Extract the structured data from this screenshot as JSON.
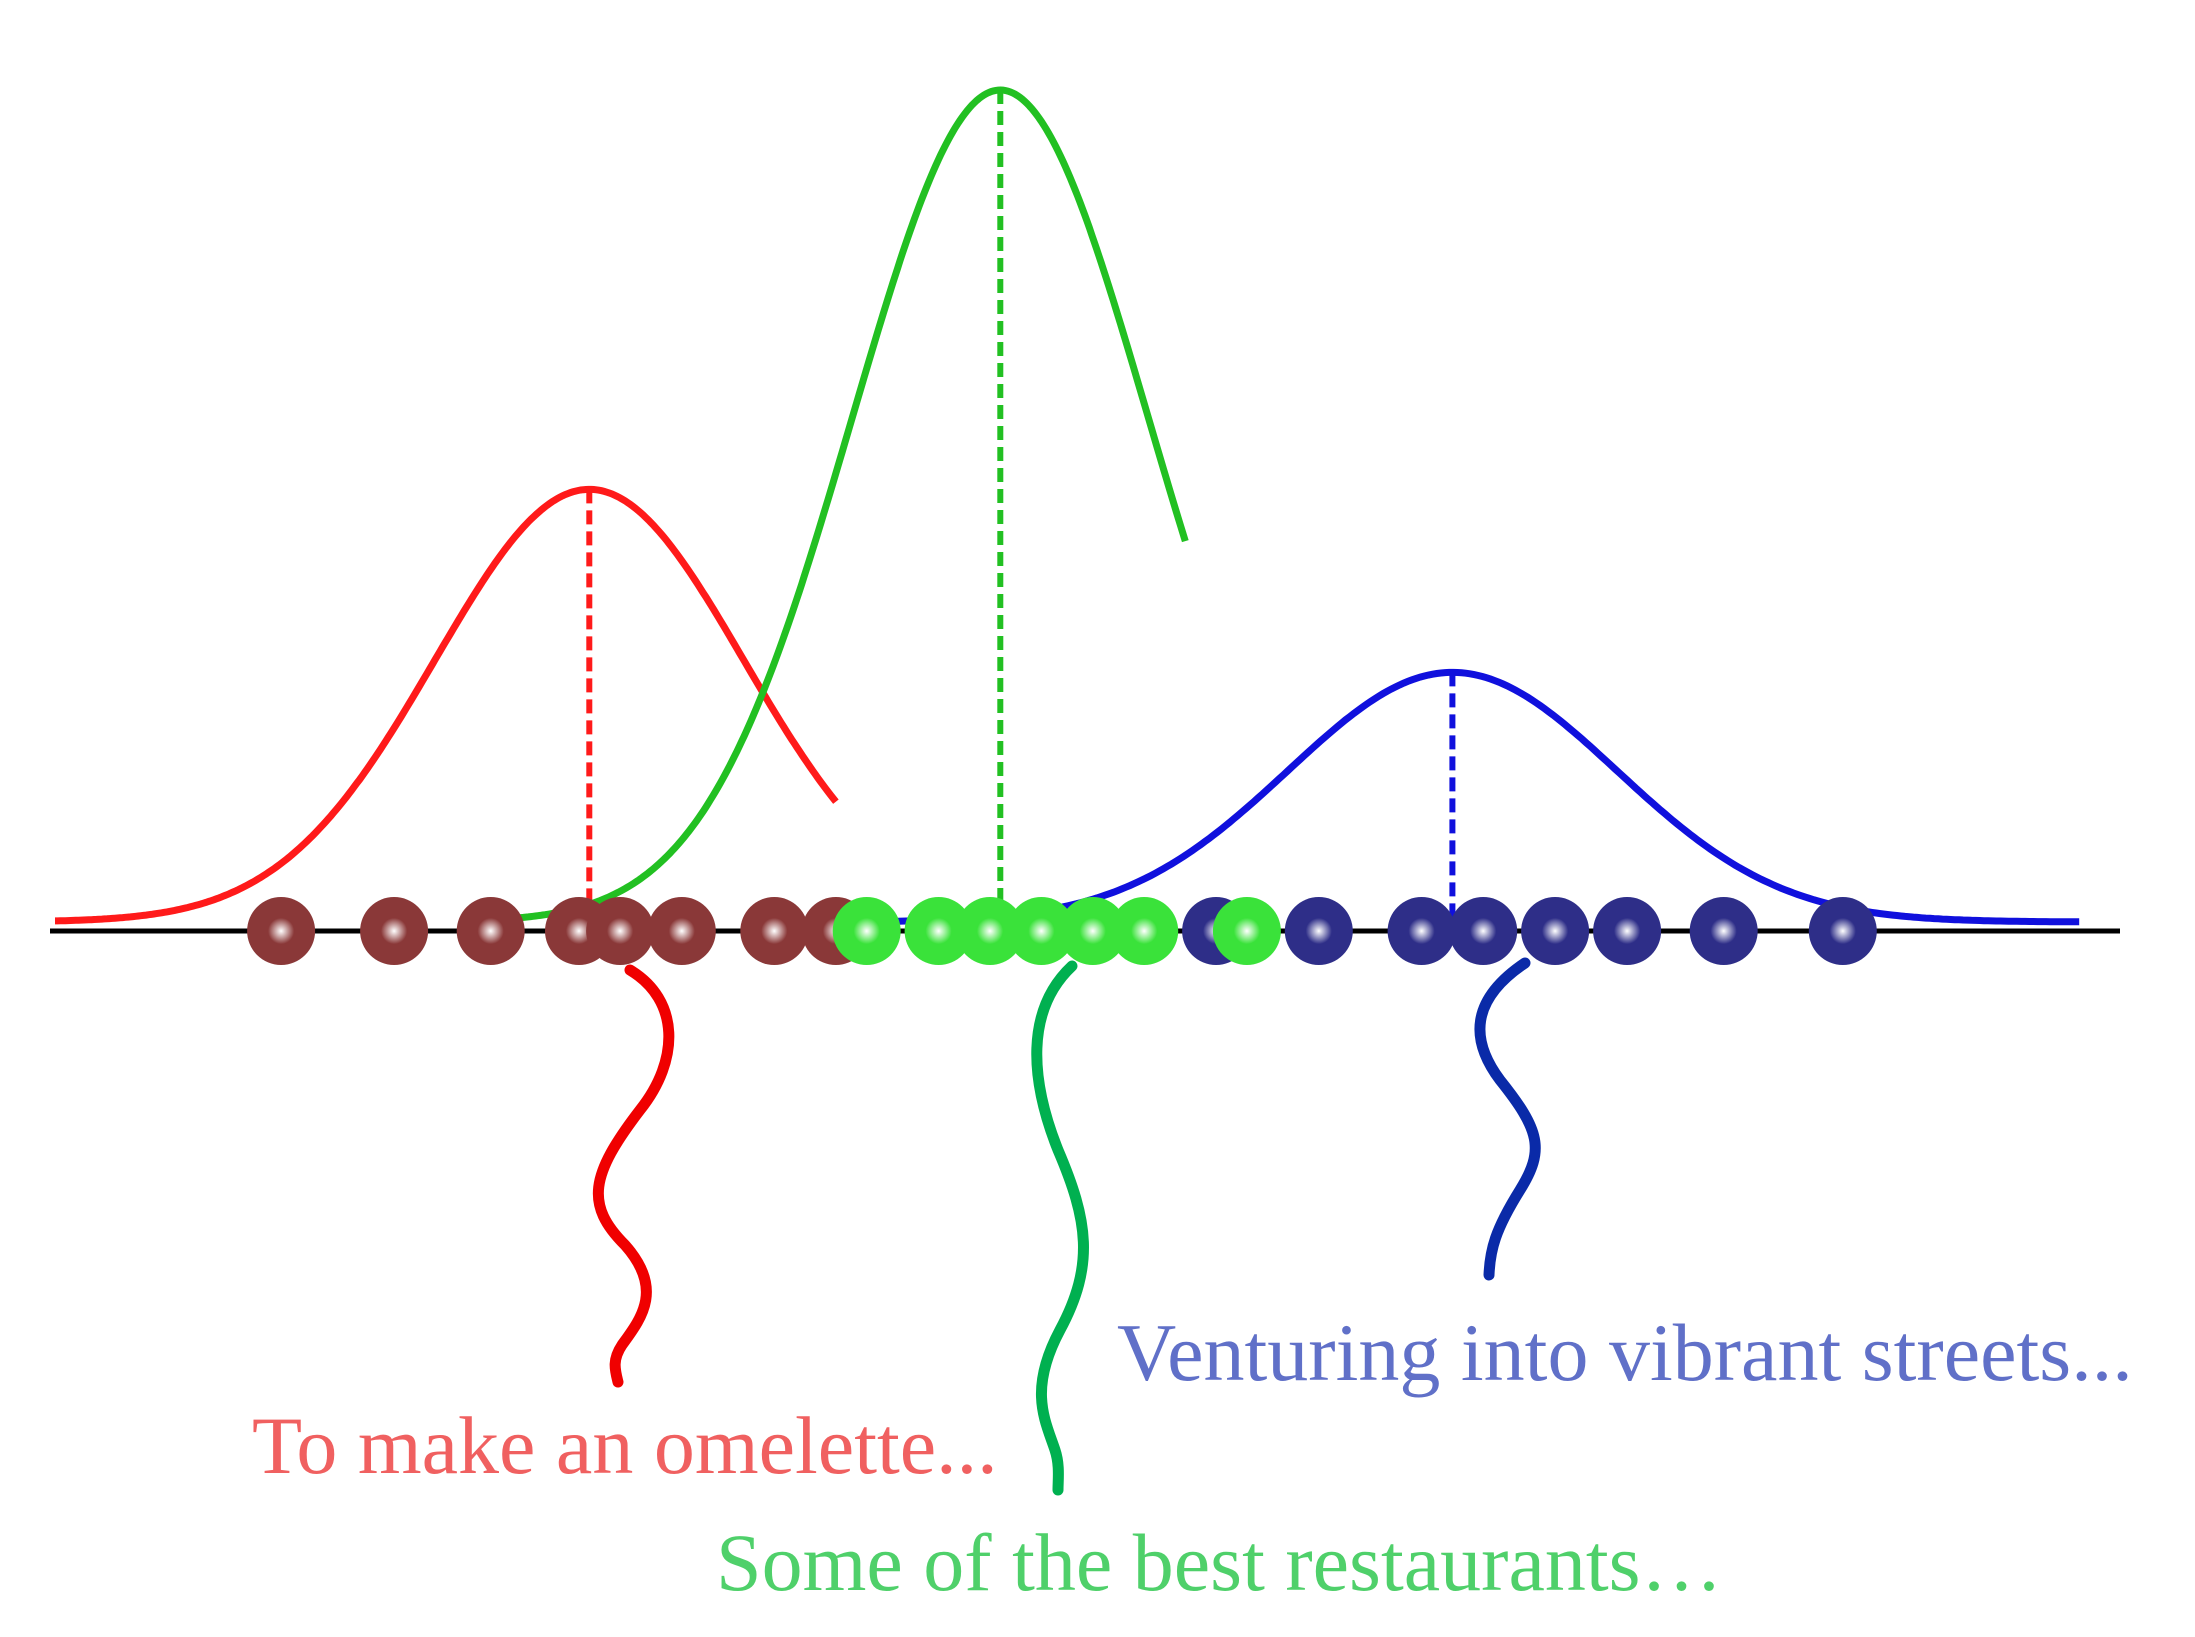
{
  "colors": {
    "background": "#ffffff",
    "axis": "#000000",
    "red_curve": "#ff1a1a",
    "green_curve": "#22c022",
    "blue_curve": "#1010dd",
    "red_ball": "#8a3838",
    "green_ball": "#3ae23a",
    "blue_ball": "#2e2e88",
    "red_squiggle": "#f00000",
    "green_squiggle": "#00b050",
    "blue_squiggle": "#0a2aa8",
    "red_text": "#f06060",
    "green_text": "#4fd06a",
    "blue_text": "#6070c8"
  },
  "clusters": [
    {
      "id": "red",
      "distribution": {
        "mean": 0.26,
        "sd": 0.075,
        "peak": 0.52
      },
      "samples": [
        0.11,
        0.165,
        0.212,
        0.255,
        0.275,
        0.305,
        0.35,
        0.38
      ],
      "caption": "To make an omelette..."
    },
    {
      "id": "green",
      "distribution": {
        "mean": 0.46,
        "sd": 0.072,
        "peak": 1.0
      },
      "samples": [
        0.395,
        0.43,
        0.455,
        0.48,
        0.505,
        0.53,
        0.58
      ],
      "caption": "Some of the best restaurants…"
    },
    {
      "id": "blue",
      "distribution": {
        "mean": 0.68,
        "sd": 0.08,
        "peak": 0.3
      },
      "samples": [
        0.565,
        0.615,
        0.665,
        0.695,
        0.73,
        0.765,
        0.812,
        0.87
      ],
      "caption": "Venturing into vibrant streets..."
    }
  ]
}
